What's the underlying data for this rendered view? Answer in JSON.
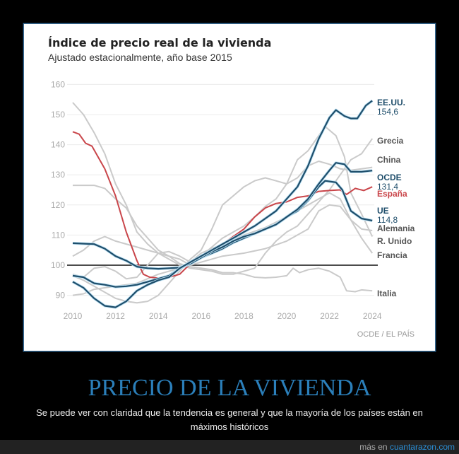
{
  "chart_data": {
    "type": "line",
    "title": "Índice de precio real de la vivienda",
    "subtitle": "Ajustado estacionalmente, año base 2015",
    "source": "OCDE / EL PAÍS",
    "xlim": [
      2010,
      2024
    ],
    "ylim": [
      85,
      160
    ],
    "x_ticks": [
      "2010",
      "2012",
      "2014",
      "2016",
      "2018",
      "2020",
      "2022",
      "2024"
    ],
    "y_ticks": [
      "160",
      "150",
      "140",
      "130",
      "120",
      "110",
      "100",
      "90"
    ],
    "reference_line": 100,
    "grid": true,
    "colors": {
      "highlight": "#1f4e6b",
      "spain": "#c9454a",
      "others": "#c8c8c8",
      "label_gray": "#555555"
    },
    "series": [
      {
        "name": "Grecia",
        "group": "other",
        "x": [
          2010,
          2010.5,
          2011,
          2011.5,
          2012,
          2012.5,
          2013,
          2013.5,
          2014,
          2014.5,
          2015,
          2015.5,
          2016,
          2016.5,
          2017,
          2017.5,
          2018,
          2018.5,
          2019,
          2019.5,
          2020,
          2020.5,
          2021,
          2021.5,
          2022,
          2022.5,
          2023,
          2023.5,
          2024
        ],
        "y": [
          154,
          150,
          144,
          137,
          127,
          120,
          111,
          107,
          104,
          102,
          100,
          99,
          98.5,
          98,
          97,
          97,
          98,
          99,
          104,
          108,
          111,
          113,
          117,
          121,
          125,
          130,
          135,
          137,
          142
        ]
      },
      {
        "name": "China",
        "group": "other",
        "x": [
          2010,
          2010.5,
          2011,
          2011.5,
          2012,
          2012.5,
          2013,
          2013.5,
          2014,
          2014.5,
          2015,
          2015.5,
          2016,
          2016.5,
          2017,
          2017.5,
          2018,
          2018.5,
          2019,
          2019.5,
          2020,
          2020.5,
          2021,
          2021.5,
          2022,
          2022.5,
          2023,
          2023.5,
          2024
        ],
        "y": [
          96.5,
          95,
          93,
          91,
          89,
          88,
          87.5,
          88,
          90,
          94,
          98,
          102,
          105,
          112,
          120,
          123,
          126,
          128,
          129,
          128,
          127,
          129,
          133,
          134.5,
          133.5,
          132,
          131.5,
          132,
          132.5
        ]
      },
      {
        "name": "Alemania",
        "group": "other",
        "x": [
          2010,
          2010.5,
          2011,
          2012,
          2013,
          2014,
          2015,
          2015.5,
          2016,
          2017,
          2018,
          2019,
          2020,
          2021,
          2021.5,
          2022,
          2022.5,
          2023,
          2023.5,
          2024
        ],
        "y": [
          90,
          90.5,
          92,
          93,
          94,
          97,
          99,
          101,
          104,
          107,
          110,
          112.5,
          116,
          120,
          122,
          124,
          122,
          115,
          112,
          111.5
        ]
      },
      {
        "name": "R. Unido",
        "group": "other",
        "x": [
          2010,
          2010.5,
          2011,
          2011.5,
          2012,
          2012.5,
          2013,
          2013.5,
          2014,
          2014.5,
          2015,
          2015.5,
          2016,
          2016.5,
          2017,
          2017.5,
          2018,
          2018.5,
          2019,
          2019.5,
          2020,
          2020.5,
          2021,
          2021.5,
          2021.8,
          2022.3,
          2022.7,
          2023,
          2023.5,
          2024
        ],
        "y": [
          97,
          96,
          99,
          99.5,
          98,
          95.5,
          96,
          100,
          104,
          104.5,
          103,
          101,
          103,
          106,
          109,
          111,
          113,
          116,
          119.5,
          122,
          127,
          135,
          138,
          143,
          146,
          143,
          136,
          124,
          117,
          109.5
        ]
      },
      {
        "name": "Francia",
        "group": "other",
        "x": [
          2010,
          2010.5,
          2011,
          2011.5,
          2012,
          2013,
          2014,
          2015,
          2015.5,
          2016,
          2017,
          2018,
          2019,
          2020,
          2021,
          2021.5,
          2022,
          2022.5,
          2023,
          2023.5,
          2024
        ],
        "y": [
          103,
          105,
          108,
          109.5,
          108,
          106,
          104,
          102,
          100,
          101,
          103,
          104,
          105.5,
          108,
          112,
          118,
          120,
          119.5,
          115,
          109,
          104
        ]
      },
      {
        "name": "Italia",
        "group": "other",
        "x": [
          2010,
          2011,
          2011.5,
          2012,
          2012.5,
          2013,
          2013.5,
          2014,
          2014.5,
          2015,
          2015.5,
          2016,
          2016.5,
          2017,
          2017.5,
          2018,
          2018.5,
          2019,
          2019.5,
          2020,
          2020.3,
          2020.6,
          2021,
          2021.5,
          2022,
          2022.5,
          2022.8,
          2023.2,
          2023.5,
          2024
        ],
        "y": [
          126.5,
          126.5,
          125.5,
          122,
          119,
          113,
          109,
          105,
          103,
          100.5,
          99.5,
          99,
          98.5,
          97.5,
          97.5,
          97,
          96,
          95.8,
          96,
          96.5,
          99,
          97.5,
          98.5,
          99,
          98,
          96,
          91.5,
          91.2,
          91.8,
          91.5
        ]
      },
      {
        "name": "España",
        "group": "spain",
        "x": [
          2010,
          2010.3,
          2010.6,
          2010.9,
          2011.5,
          2012,
          2012.5,
          2013,
          2013.3,
          2013.6,
          2014,
          2014.5,
          2015,
          2015.5,
          2016,
          2016.5,
          2017,
          2017.5,
          2018,
          2018.5,
          2019,
          2019.5,
          2020,
          2020.5,
          2021,
          2021.5,
          2022,
          2022.5,
          2022.8,
          2023.2,
          2023.6,
          2024
        ],
        "y": [
          144.3,
          143.5,
          140.5,
          139.5,
          132,
          123,
          111,
          101.5,
          97,
          96,
          95.7,
          96,
          97,
          100.5,
          103,
          105,
          107,
          109.5,
          112,
          116,
          119,
          120.5,
          121,
          122.5,
          123,
          124.5,
          124.8,
          125,
          123.5,
          125.5,
          124.8,
          126
        ]
      },
      {
        "name": "UE",
        "value_label": "114,8",
        "group": "highlight",
        "x": [
          2010,
          2010.5,
          2011,
          2011.5,
          2012,
          2012.5,
          2013,
          2013.5,
          2014,
          2014.5,
          2015,
          2015.5,
          2016,
          2016.5,
          2017,
          2017.5,
          2018,
          2018.5,
          2019,
          2019.5,
          2020,
          2020.5,
          2021,
          2021.5,
          2021.8,
          2022.3,
          2022.6,
          2023,
          2023.5,
          2024
        ],
        "y": [
          96.5,
          96,
          94,
          93.5,
          92.8,
          93,
          93.5,
          94.5,
          95.5,
          96.5,
          99,
          100.5,
          102.5,
          104,
          105.5,
          107.5,
          109,
          110.5,
          112,
          113.5,
          116,
          118,
          121.5,
          126,
          128,
          127.5,
          125,
          118,
          115.5,
          114.8
        ]
      },
      {
        "name": "OCDE",
        "value_label": "131,4",
        "group": "highlight",
        "x": [
          2010,
          2011,
          2011.5,
          2012,
          2012.5,
          2013,
          2013.5,
          2014,
          2014.5,
          2015,
          2015.5,
          2016,
          2016.5,
          2017,
          2017.5,
          2018,
          2018.5,
          2019,
          2019.5,
          2020,
          2020.5,
          2021,
          2021.5,
          2022,
          2022.3,
          2022.7,
          2023,
          2023.5,
          2024
        ],
        "y": [
          107.3,
          107,
          105.5,
          103,
          101.5,
          99.5,
          99,
          98.8,
          99,
          99.2,
          100.5,
          102.5,
          104.5,
          106,
          108,
          109.5,
          110.5,
          112,
          113.5,
          116,
          118.5,
          122,
          127,
          131.5,
          134,
          133.5,
          131,
          131,
          131.4
        ]
      },
      {
        "name": "EE.UU.",
        "value_label": "154,6",
        "group": "highlight",
        "x": [
          2010,
          2010.5,
          2011,
          2011.5,
          2012,
          2012.5,
          2013,
          2013.5,
          2014,
          2014.5,
          2015,
          2015.5,
          2016,
          2016.5,
          2017,
          2017.5,
          2018,
          2018.5,
          2019,
          2019.5,
          2020,
          2020.5,
          2021,
          2021.5,
          2022,
          2022.3,
          2022.7,
          2023,
          2023.3,
          2023.7,
          2024
        ],
        "y": [
          94.5,
          92.5,
          89,
          86.5,
          86,
          88,
          91.5,
          93.5,
          95,
          96,
          99,
          101,
          103,
          105,
          107,
          109,
          111,
          113,
          115.5,
          118,
          122,
          126,
          133,
          142,
          149,
          151.5,
          149.5,
          148.7,
          148.7,
          153,
          154.6
        ]
      }
    ]
  },
  "post": {
    "headline": "PRECIO DE LA VIVIENDA",
    "caption": "Se puede ver con claridad que la tendencia es general y que la mayoría de los países están en máximos históricos"
  },
  "footer": {
    "prefix": "más en",
    "site": "cuantarazon.com"
  }
}
